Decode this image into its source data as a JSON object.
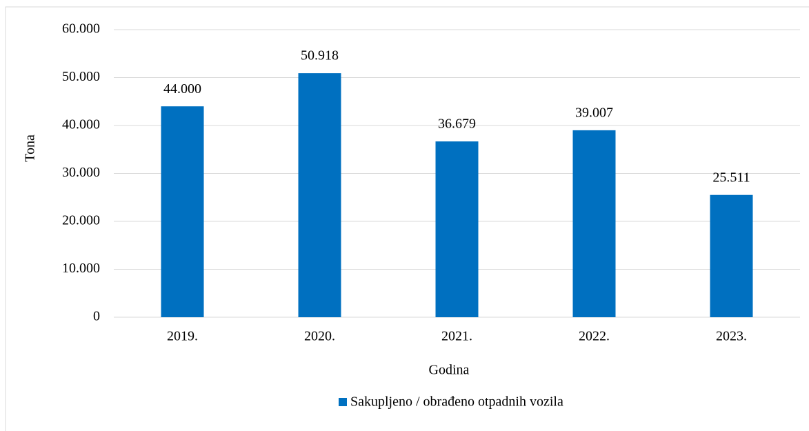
{
  "chart_data": {
    "type": "bar",
    "x_label": "Godina",
    "y_label": "Tona",
    "categories": [
      "2019.",
      "2020.",
      "2021.",
      "2022.",
      "2023."
    ],
    "series": [
      {
        "name": "Sakupljeno / obrađeno otpadnih vozila",
        "color": "#0070c0",
        "values": [
          44000,
          50918,
          36679,
          39007,
          25511
        ],
        "value_labels": [
          "44.000",
          "50.918",
          "36.679",
          "39.007",
          "25.511"
        ]
      }
    ],
    "ylim": [
      0,
      60000
    ],
    "yticks": [
      0,
      {
        "value": 10000,
        "label": "10.000"
      },
      {
        "value": 20000,
        "label": "20.000"
      },
      {
        "value": 30000,
        "label": "30.000"
      },
      {
        "value": 40000,
        "label": "40.000"
      },
      {
        "value": 50000,
        "label": "50.000"
      },
      {
        "value": 60000,
        "label": "60.000"
      }
    ],
    "grid": true,
    "legend": "bottom"
  }
}
